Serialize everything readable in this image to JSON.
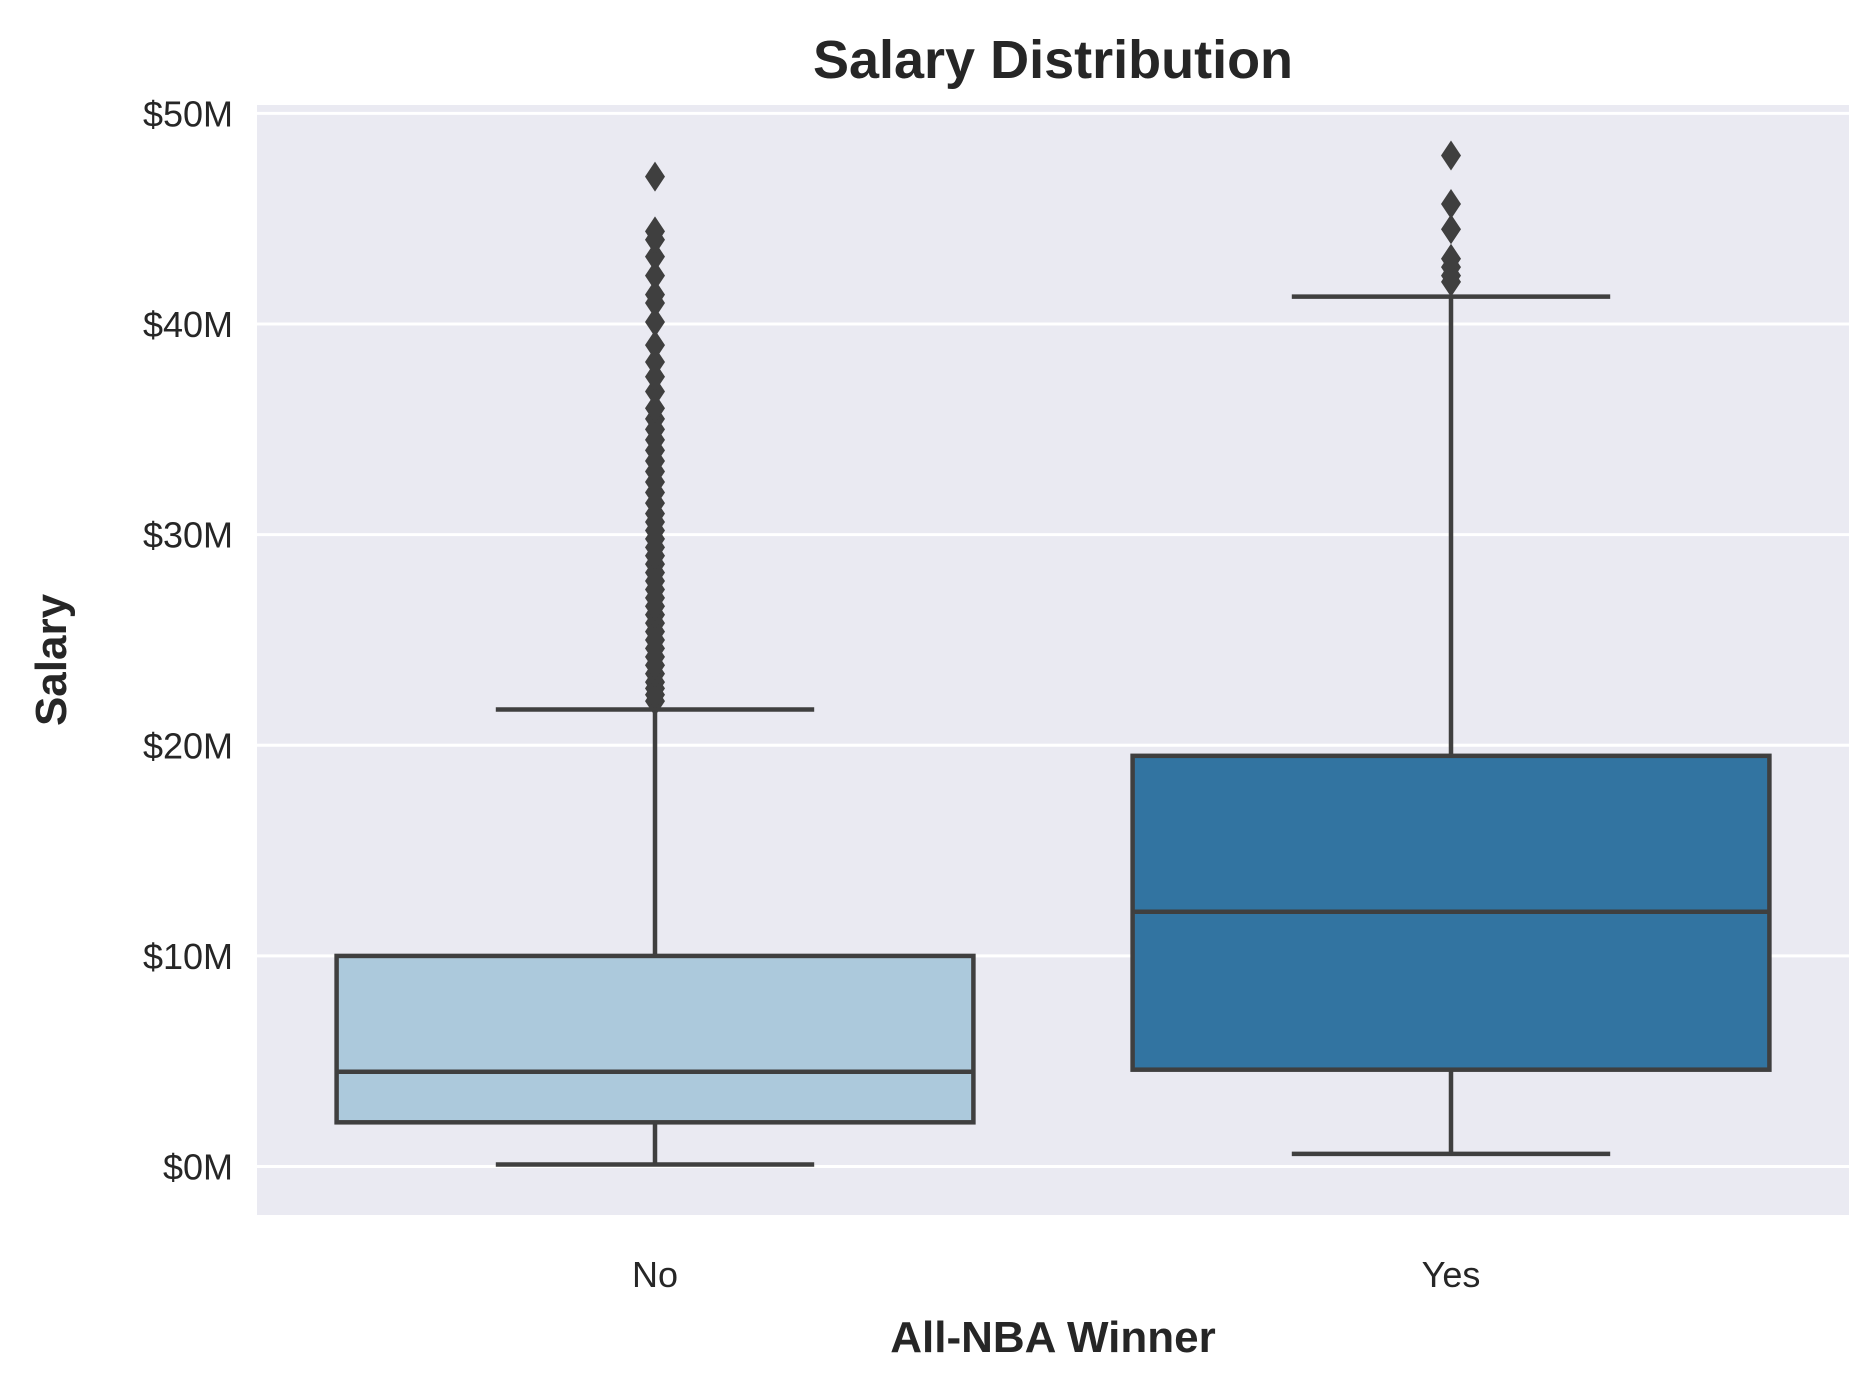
{
  "chart_data": {
    "type": "box",
    "title": "Salary Distribution",
    "xlabel": "All-NBA Winner",
    "ylabel": "Salary",
    "categories": [
      "No",
      "Yes"
    ],
    "y_ticks": [
      {
        "value": 0,
        "label": "$0M"
      },
      {
        "value": 10,
        "label": "$10M"
      },
      {
        "value": 20,
        "label": "$20M"
      },
      {
        "value": 30,
        "label": "$30M"
      },
      {
        "value": 40,
        "label": "$40M"
      },
      {
        "value": 50,
        "label": "$50M"
      }
    ],
    "ylim": [
      -2.3,
      50.4
    ],
    "y_unit": "millions of dollars",
    "grid": true,
    "background_color": "#eaeaf2",
    "grid_color": "#ffffff",
    "line_color": "#3f3f3f",
    "boxes": [
      {
        "category": "No",
        "color": "#acc9dc",
        "whisker_low": 0.1,
        "q1": 2.1,
        "median": 4.5,
        "q3": 10.0,
        "whisker_high": 21.7,
        "outliers": [
          22.1,
          22.4,
          22.7,
          23.0,
          23.4,
          23.8,
          24.2,
          24.6,
          25.0,
          25.4,
          25.8,
          26.2,
          26.6,
          27.0,
          27.4,
          27.8,
          28.2,
          28.6,
          29.0,
          29.4,
          29.8,
          30.2,
          30.6,
          31.0,
          31.5,
          32.0,
          32.5,
          33.0,
          33.5,
          34.0,
          34.5,
          35.0,
          35.5,
          36.0,
          36.8,
          37.5,
          38.2,
          39.0,
          40.1,
          41.0,
          41.4,
          42.3,
          43.2,
          44.0,
          44.4,
          47.0
        ]
      },
      {
        "category": "Yes",
        "color": "#3274a1",
        "whisker_low": 0.6,
        "q1": 4.6,
        "median": 12.1,
        "q3": 19.5,
        "whisker_high": 41.3,
        "outliers": [
          42.0,
          42.3,
          42.7,
          43.1,
          44.5,
          45.7,
          48.0
        ]
      }
    ]
  }
}
